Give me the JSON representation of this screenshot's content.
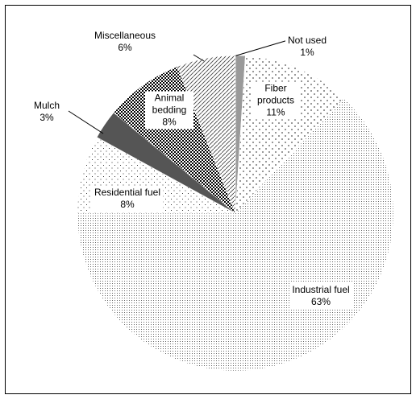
{
  "chart_data": {
    "type": "pie",
    "categories": [
      "Not used",
      "Fiber products",
      "Industrial fuel",
      "Residential fuel",
      "Mulch",
      "Animal bedding",
      "Miscellaneous"
    ],
    "values": [
      1,
      11,
      63,
      8,
      3,
      8,
      6
    ],
    "value_labels": [
      "1%",
      "11%",
      "63%",
      "8%",
      "3%",
      "8%",
      "6%"
    ]
  }
}
